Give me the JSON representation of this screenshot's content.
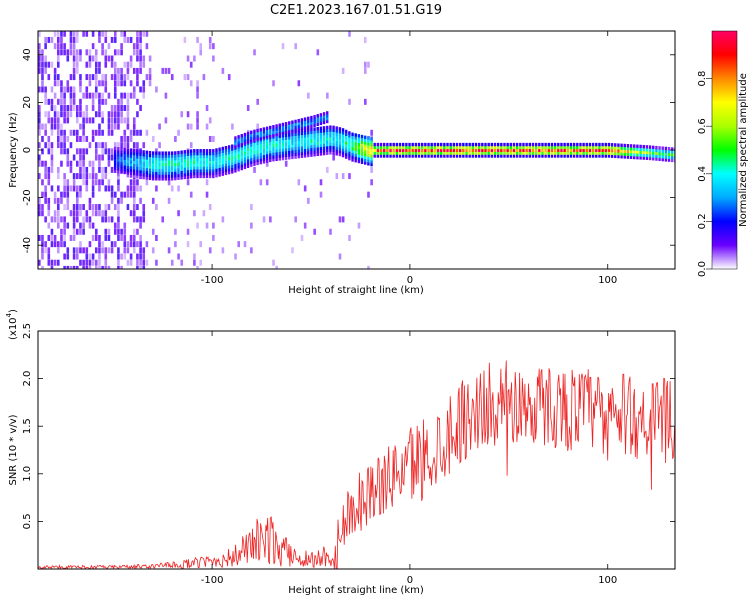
{
  "figure_title": "C2E1.2023.167.01.51.G19",
  "chart_data": [
    {
      "type": "heatmap",
      "title": "C2E1.2023.167.01.51.G19",
      "xlabel": "Height of straight line (km)",
      "ylabel": "Frequency (Hz)",
      "xlim": [
        -188,
        134
      ],
      "ylim": [
        -50,
        50
      ],
      "xticks": [
        -100,
        0,
        100
      ],
      "xtick_labels": [
        "-100",
        "0",
        "100"
      ],
      "yticks": [
        -40,
        -20,
        0,
        20,
        40
      ],
      "ytick_labels": [
        "-40",
        "-20",
        "0",
        "20",
        "40"
      ],
      "grid": false,
      "ridge": {
        "description_x": [
          -150,
          -140,
          -130,
          -120,
          -110,
          -100,
          -90,
          -80,
          -70,
          -60,
          -50,
          -40,
          -35,
          -30,
          -20,
          -10,
          0,
          20,
          40,
          60,
          80,
          100,
          120,
          134
        ],
        "frequency": [
          -4,
          -5,
          -6,
          -6,
          -5,
          -5,
          -3,
          0,
          2,
          3,
          4,
          5,
          4,
          2,
          0,
          0,
          0,
          0,
          0,
          0,
          0,
          0,
          -1,
          -2
        ],
        "peak_amplitude": [
          0.25,
          0.35,
          0.45,
          0.45,
          0.45,
          0.4,
          0.45,
          0.45,
          0.45,
          0.4,
          0.45,
          0.4,
          0.45,
          0.5,
          0.8,
          0.95,
          0.95,
          0.95,
          0.95,
          0.95,
          0.95,
          0.95,
          0.6,
          0.5
        ]
      },
      "upper_branch": {
        "x": [
          -90,
          -80,
          -70,
          -60,
          -50,
          -42
        ],
        "frequency": [
          3,
          6,
          8,
          10,
          12,
          14
        ]
      },
      "colorbar": {
        "label": "Normalized spectral amplitude",
        "range": [
          0,
          1
        ],
        "ticks": [
          0.0,
          0.2,
          0.4,
          0.6,
          0.8
        ],
        "tick_labels": [
          "0.0",
          "0.2",
          "0.4",
          "0.6",
          "0.8"
        ],
        "colormap": [
          "#ffffff",
          "#6a00ff",
          "#0000ff",
          "#00aaff",
          "#00ffff",
          "#00ff00",
          "#aaff00",
          "#ffff00",
          "#ff8800",
          "#ff0000",
          "#ff0066"
        ]
      }
    },
    {
      "type": "line",
      "xlabel": "Height of straight line (km)",
      "ylabel": "SNR (10 * v/v)",
      "multiplier_label": "(x10",
      "multiplier_exponent": "4",
      "xlim": [
        -188,
        134
      ],
      "ylim": [
        0,
        2.5
      ],
      "xticks": [
        -100,
        0,
        100
      ],
      "xtick_labels": [
        "-100",
        "0",
        "100"
      ],
      "yticks": [
        0.5,
        1.0,
        1.5,
        2.0,
        2.5
      ],
      "ytick_labels": [
        "0.5",
        "1.0",
        "1.5",
        "2.0",
        "2.5"
      ],
      "grid": false,
      "series": [
        {
          "color": "#ee2222",
          "x": [
            -188,
            -170,
            -150,
            -130,
            -120,
            -110,
            -100,
            -95,
            -90,
            -85,
            -80,
            -75,
            -70,
            -65,
            -60,
            -55,
            -50,
            -45,
            -40,
            -35,
            -32,
            -30,
            -27,
            -25,
            -22,
            -20,
            -15,
            -10,
            -5,
            0,
            5,
            10,
            15,
            20,
            25,
            30,
            35,
            40,
            45,
            50,
            55,
            60,
            65,
            70,
            75,
            80,
            85,
            90,
            95,
            100,
            105,
            110,
            115,
            120,
            125,
            130,
            134
          ],
          "y": [
            0.02,
            0.02,
            0.02,
            0.03,
            0.04,
            0.06,
            0.08,
            0.1,
            0.12,
            0.18,
            0.25,
            0.3,
            0.3,
            0.2,
            0.15,
            0.12,
            0.1,
            0.12,
            0.18,
            0.3,
            0.55,
            0.65,
            0.7,
            0.72,
            0.78,
            0.82,
            0.88,
            0.95,
            1.05,
            1.1,
            1.15,
            1.22,
            1.3,
            1.45,
            1.55,
            1.62,
            1.68,
            1.72,
            1.75,
            1.75,
            1.72,
            1.72,
            1.72,
            1.72,
            1.7,
            1.68,
            1.68,
            1.68,
            1.65,
            1.62,
            1.62,
            1.6,
            1.6,
            1.58,
            1.58,
            1.55,
            1.55
          ]
        }
      ]
    }
  ]
}
